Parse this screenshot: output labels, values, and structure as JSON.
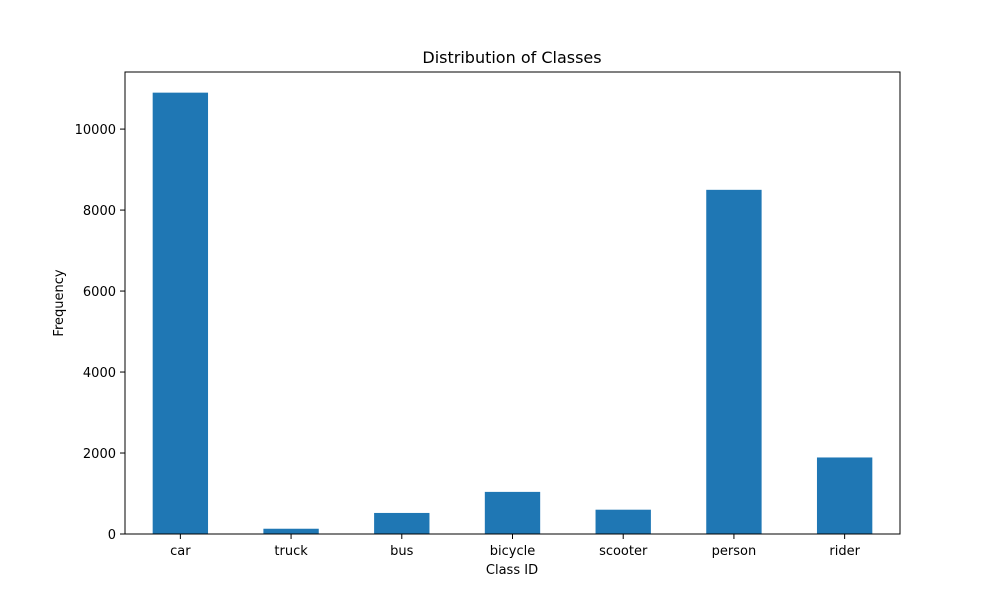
{
  "chart_data": {
    "type": "bar",
    "title": "Distribution of Classes",
    "xlabel": "Class ID",
    "ylabel": "Frequency",
    "categories": [
      "car",
      "truck",
      "bus",
      "bicycle",
      "scooter",
      "person",
      "rider"
    ],
    "values": [
      10900,
      130,
      520,
      1040,
      600,
      8500,
      1890
    ],
    "ylim": [
      0,
      11410
    ],
    "yticks": [
      0,
      2000,
      4000,
      6000,
      8000,
      10000
    ],
    "ytick_labels": [
      "0",
      "2000",
      "4000",
      "6000",
      "8000",
      "10000"
    ],
    "grid": false,
    "legend": "none",
    "bar_color": "#1f77b4",
    "axes_color": "#000000"
  }
}
